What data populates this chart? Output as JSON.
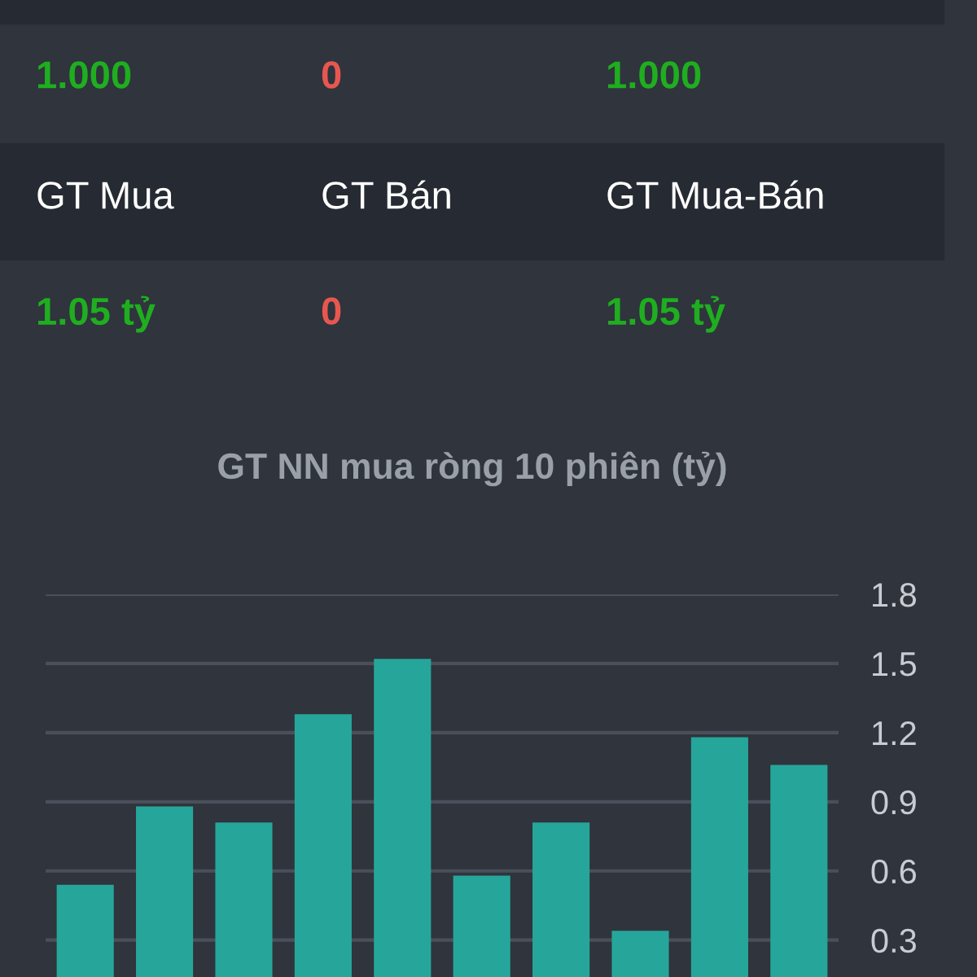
{
  "chart_data": [
    {
      "type": "other",
      "annotations": [
        "1.000",
        "0",
        "1.000",
        "GT Mua",
        "GT Bán",
        "GT Mua-Bán",
        "1.05 tỷ",
        "0",
        "1.05 tỷ"
      ],
      "colors": [
        "#1fae1f",
        "#e8574f",
        "#1fae1f",
        "#ffffff",
        "#ffffff",
        "#ffffff",
        "#1fae1f",
        "#e8574f",
        "#1fae1f"
      ]
    },
    {
      "type": "bar",
      "title": "GT NN mua ròng 10 phiên (tỷ)",
      "categories": [
        null,
        null,
        null,
        null,
        null,
        null,
        null,
        null,
        null,
        null
      ],
      "values": [
        0.54,
        0.88,
        0.81,
        1.28,
        1.52,
        0.58,
        0.81,
        0.34,
        1.18,
        1.06
      ],
      "color": "#26a69a",
      "ylim": [
        0.14,
        1.8
      ],
      "yticks": [
        0.3,
        0.6,
        0.9,
        1.2,
        1.5,
        1.8
      ],
      "grid": "y",
      "tick_labels": "y"
    }
  ]
}
